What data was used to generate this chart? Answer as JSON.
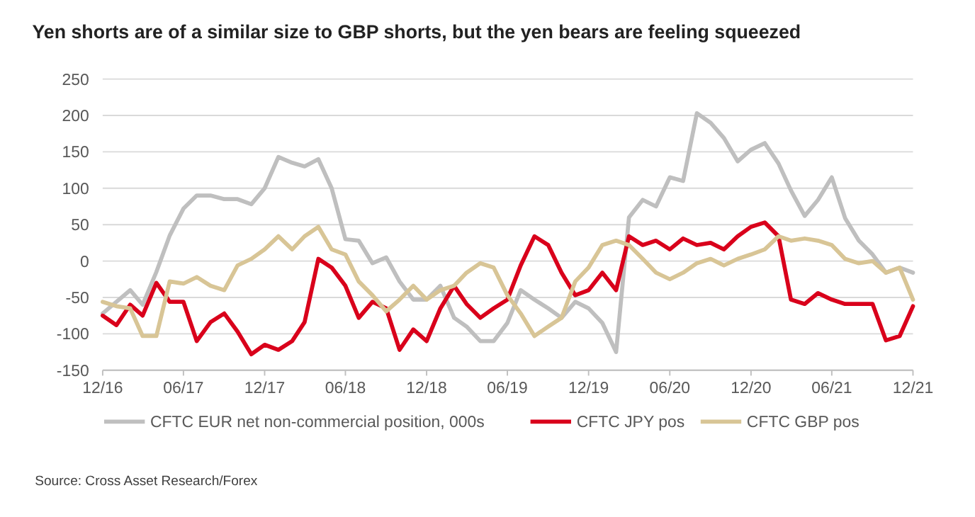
{
  "chart_data": {
    "type": "line",
    "title": "Yen shorts are of a similar size to GBP shorts, but the yen bears are feeling squeezed",
    "annotations": [
      "Source: Cross Asset Research/Forex"
    ],
    "x": [
      "2016-12",
      "2017-01",
      "2017-02",
      "2017-03",
      "2017-04",
      "2017-05",
      "2017-06",
      "2017-07",
      "2017-08",
      "2017-09",
      "2017-10",
      "2017-11",
      "2017-12",
      "2018-01",
      "2018-02",
      "2018-03",
      "2018-04",
      "2018-05",
      "2018-06",
      "2018-07",
      "2018-08",
      "2018-09",
      "2018-10",
      "2018-11",
      "2018-12",
      "2019-01",
      "2019-02",
      "2019-03",
      "2019-04",
      "2019-05",
      "2019-06",
      "2019-07",
      "2019-08",
      "2019-09",
      "2019-10",
      "2019-11",
      "2019-12",
      "2020-01",
      "2020-02",
      "2020-03",
      "2020-04",
      "2020-05",
      "2020-06",
      "2020-07",
      "2020-08",
      "2020-09",
      "2020-10",
      "2020-11",
      "2020-12",
      "2021-01",
      "2021-02",
      "2021-03",
      "2021-04",
      "2021-05",
      "2021-06",
      "2021-07",
      "2021-08",
      "2021-09",
      "2021-10",
      "2021-11",
      "2021-12"
    ],
    "series": [
      {
        "name": "CFTC EUR net non-commercial position, 000s",
        "color": "#bfbfbf",
        "values": [
          -72,
          -56,
          -40,
          -60,
          -15,
          35,
          72,
          90,
          90,
          85,
          85,
          78,
          100,
          143,
          135,
          130,
          140,
          100,
          30,
          28,
          -3,
          5,
          -28,
          -53,
          -53,
          -34,
          -78,
          -90,
          -110,
          -110,
          -85,
          -40,
          -53,
          -65,
          -78,
          -56,
          -65,
          -85,
          -125,
          60,
          84,
          75,
          115,
          110,
          203,
          190,
          169,
          137,
          153,
          162,
          134,
          97,
          62,
          84,
          115,
          59,
          28,
          9,
          -16,
          -9,
          -16
        ]
      },
      {
        "name": "CFTC JPY pos",
        "color": "#d9001b",
        "values": [
          -75,
          -88,
          -60,
          -75,
          -30,
          -56,
          -56,
          -110,
          -84,
          -72,
          -97,
          -128,
          -115,
          -122,
          -110,
          -84,
          3,
          -9,
          -34,
          -78,
          -56,
          -65,
          -122,
          -94,
          -110,
          -65,
          -34,
          -59,
          -78,
          -65,
          -53,
          -6,
          34,
          22,
          -16,
          -47,
          -40,
          -16,
          -40,
          34,
          22,
          28,
          16,
          31,
          22,
          25,
          16,
          34,
          47,
          53,
          34,
          -53,
          -59,
          -44,
          -53,
          -59,
          -59,
          -59,
          -109,
          -103,
          -62
        ]
      },
      {
        "name": "CFTC GBP pos",
        "color": "#d8c596",
        "values": [
          -56,
          -62,
          -65,
          -103,
          -103,
          -28,
          -31,
          -22,
          -34,
          -40,
          -6,
          3,
          16,
          34,
          16,
          34,
          47,
          16,
          9,
          -28,
          -47,
          -69,
          -53,
          -34,
          -53,
          -40,
          -34,
          -16,
          -3,
          -9,
          -47,
          -72,
          -103,
          -90,
          -78,
          -28,
          -9,
          22,
          28,
          22,
          3,
          -16,
          -25,
          -16,
          -3,
          3,
          -6,
          3,
          9,
          16,
          34,
          28,
          31,
          28,
          22,
          3,
          -3,
          0,
          -16,
          -9,
          -53
        ]
      }
    ],
    "xlim": [
      "2016-12",
      "2021-12"
    ],
    "xticks": [
      {
        "value": "2016-12",
        "label": "12/16"
      },
      {
        "value": "2017-06",
        "label": "06/17"
      },
      {
        "value": "2017-12",
        "label": "12/17"
      },
      {
        "value": "2018-06",
        "label": "06/18"
      },
      {
        "value": "2018-12",
        "label": "12/18"
      },
      {
        "value": "2019-06",
        "label": "06/19"
      },
      {
        "value": "2019-12",
        "label": "12/19"
      },
      {
        "value": "2020-06",
        "label": "06/20"
      },
      {
        "value": "2020-12",
        "label": "12/20"
      },
      {
        "value": "2021-06",
        "label": "06/21"
      },
      {
        "value": "2021-12",
        "label": "12/21"
      }
    ],
    "ylim": [
      -150,
      250
    ],
    "yticks": [
      -150,
      -100,
      -50,
      0,
      50,
      100,
      150,
      200,
      250
    ],
    "grid": "y",
    "legend": "bottom",
    "marker": "none",
    "line_style": "solid"
  }
}
